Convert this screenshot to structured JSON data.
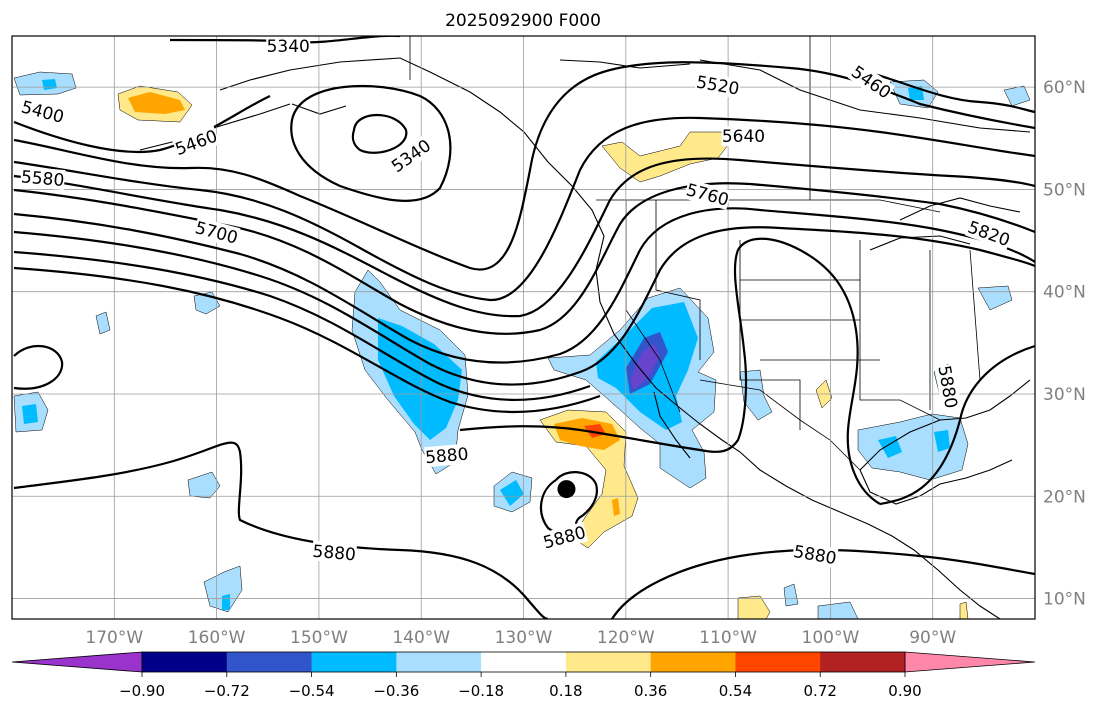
{
  "title": "2025092900 F000",
  "map": {
    "lon_range": [
      -180,
      -80
    ],
    "lat_range": [
      8,
      65
    ],
    "lon_ticks": [
      {
        "value": -170,
        "label": "170°W"
      },
      {
        "value": -160,
        "label": "160°W"
      },
      {
        "value": -150,
        "label": "150°W"
      },
      {
        "value": -140,
        "label": "140°W"
      },
      {
        "value": -130,
        "label": "130°W"
      },
      {
        "value": -120,
        "label": "120°W"
      },
      {
        "value": -110,
        "label": "110°W"
      },
      {
        "value": -100,
        "label": "100°W"
      },
      {
        "value": -90,
        "label": "90°W"
      }
    ],
    "lat_ticks": [
      {
        "value": 60,
        "label": "60°N"
      },
      {
        "value": 50,
        "label": "50°N"
      },
      {
        "value": 40,
        "label": "40°N"
      },
      {
        "value": 30,
        "label": "30°N"
      },
      {
        "value": 20,
        "label": "20°N"
      },
      {
        "value": 10,
        "label": "10°N"
      }
    ],
    "contour_labels": [
      {
        "text": "5340",
        "lon": -153,
        "lat": 64.0,
        "angle": 0
      },
      {
        "text": "5340",
        "lon": -141,
        "lat": 53.3,
        "angle": -35
      },
      {
        "text": "5400",
        "lon": -177,
        "lat": 57.6,
        "angle": 15
      },
      {
        "text": "5460",
        "lon": -162,
        "lat": 54.6,
        "angle": -20
      },
      {
        "text": "5580",
        "lon": -177,
        "lat": 51.1,
        "angle": 5
      },
      {
        "text": "5700",
        "lon": -160,
        "lat": 45.8,
        "angle": 15
      },
      {
        "text": "5880",
        "lon": -137.5,
        "lat": 24.0,
        "angle": -5
      },
      {
        "text": "5880",
        "lon": -148.5,
        "lat": 14.5,
        "angle": 5
      },
      {
        "text": "5880",
        "lon": -126,
        "lat": 16.0,
        "angle": -15
      },
      {
        "text": "5880",
        "lon": -101.5,
        "lat": 14.3,
        "angle": 10
      },
      {
        "text": "5520",
        "lon": -111,
        "lat": 60.2,
        "angle": 10
      },
      {
        "text": "5640",
        "lon": -108.5,
        "lat": 55.2,
        "angle": 0
      },
      {
        "text": "5760",
        "lon": -112,
        "lat": 49.5,
        "angle": 15
      },
      {
        "text": "5460",
        "lon": -96,
        "lat": 60.5,
        "angle": 35
      },
      {
        "text": "5820",
        "lon": -84.5,
        "lat": 45.7,
        "angle": 20
      },
      {
        "text": "5880",
        "lon": -88.5,
        "lat": 30.7,
        "angle": 80
      }
    ],
    "storm_marker": {
      "lon": -125.8,
      "lat": 20.7
    }
  },
  "colorbar": {
    "boundaries": [
      -0.9,
      -0.72,
      -0.54,
      -0.36,
      -0.18,
      0.18,
      0.36,
      0.54,
      0.72,
      0.9
    ],
    "tick_labels": [
      "−0.90",
      "−0.72",
      "−0.54",
      "−0.36",
      "−0.18",
      "0.18",
      "0.36",
      "0.54",
      "0.72",
      "0.90"
    ],
    "colors": [
      "#9933cc",
      "#000088",
      "#3355cc",
      "#00bbff",
      "#aadeff",
      "#ffffff",
      "#ffe98a",
      "#ffa500",
      "#ff4500",
      "#b22222",
      "#ff88aa"
    ]
  },
  "palette": {
    "neg_light": "#aadeff",
    "neg_mid": "#00bbff",
    "neg_dark": "#3355cc",
    "neg_purple": "#6644cc",
    "pos_light": "#ffe98a",
    "pos_mid": "#ffa500",
    "pos_strong": "#ff4500"
  }
}
